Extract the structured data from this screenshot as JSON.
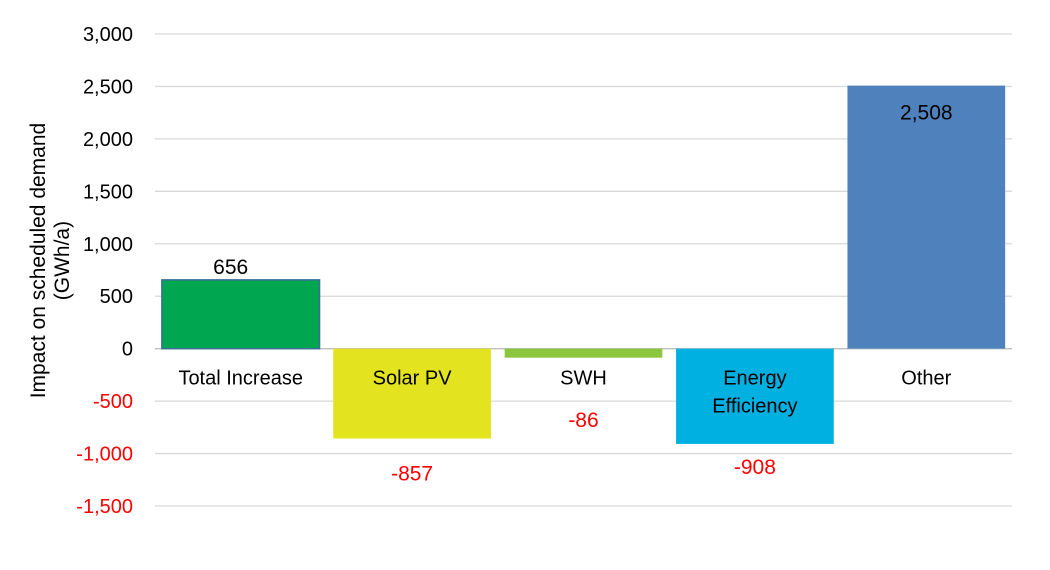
{
  "chart_data": {
    "type": "bar",
    "ylabel_lines": [
      "Impact on scheduled demand",
      "(GWh/a)"
    ],
    "ylim": [
      -1500,
      3000
    ],
    "yticks": [
      3000,
      2500,
      2000,
      1500,
      1000,
      500,
      0,
      -500,
      -1000,
      -1500
    ],
    "ytick_labels": [
      "3,000",
      "2,500",
      "2,000",
      "1,500",
      "1,000",
      "500",
      "0",
      "-500",
      "-1,000",
      "-1,500"
    ],
    "grid": true,
    "categories": [
      "Total Increase",
      "Solar PV",
      "SWH",
      "Energy Efficiency",
      "Other"
    ],
    "category_label_lines": [
      [
        "Total Increase"
      ],
      [
        "Solar PV"
      ],
      [
        "SWH"
      ],
      [
        "Energy",
        "Efficiency"
      ],
      [
        "Other"
      ]
    ],
    "values": [
      656,
      -857,
      -86,
      -908,
      2508
    ],
    "value_labels": [
      "656",
      "-857",
      "-86",
      "-908",
      "2,508"
    ],
    "colors": [
      "#00a650",
      "#e3e31f",
      "#8cc63f",
      "#00b0e0",
      "#4f81bd"
    ],
    "positive_label_color": "#000000",
    "negative_label_color": "#ff0000"
  }
}
